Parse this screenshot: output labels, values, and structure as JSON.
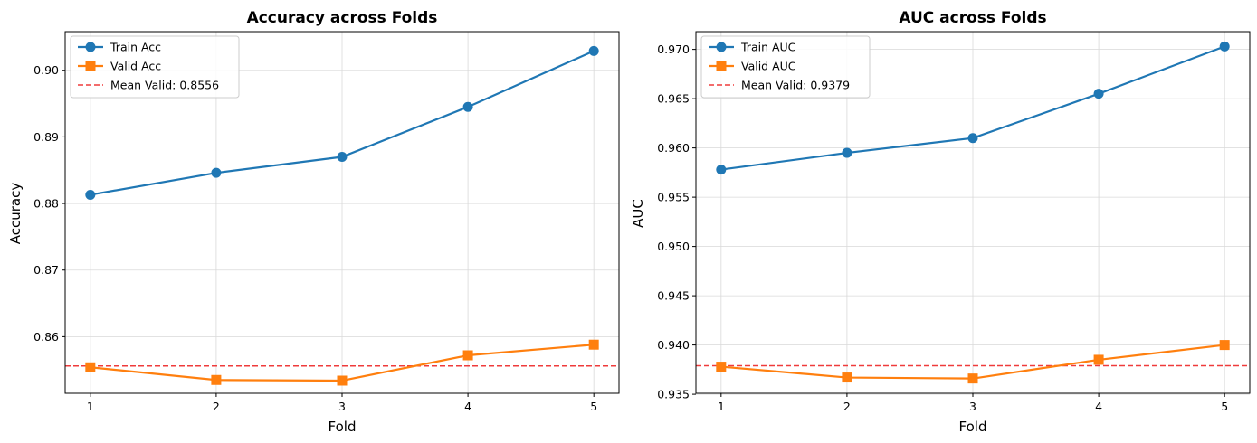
{
  "chart_data": [
    {
      "type": "line",
      "title": "Accuracy across Folds",
      "xlabel": "Fold",
      "ylabel": "Accuracy",
      "x": [
        1,
        2,
        3,
        4,
        5
      ],
      "xticks": [
        "1",
        "2",
        "3",
        "4",
        "5"
      ],
      "xlim": [
        0.8,
        5.2
      ],
      "ylim": [
        0.8515,
        0.9058
      ],
      "yticks": [
        "0.86",
        "0.87",
        "0.88",
        "0.89",
        "0.90"
      ],
      "ytick_values": [
        0.86,
        0.87,
        0.88,
        0.89,
        0.9
      ],
      "grid": true,
      "legend_position": "top-left",
      "series": [
        {
          "name": "Train Acc",
          "values": [
            0.8813,
            0.8846,
            0.887,
            0.8945,
            0.9029
          ],
          "color": "#1f77b4",
          "marker": "circle"
        },
        {
          "name": "Valid Acc",
          "values": [
            0.8554,
            0.8535,
            0.8534,
            0.8572,
            0.8588
          ],
          "color": "#ff7f0e",
          "marker": "square"
        }
      ],
      "reference_line": {
        "label": "Mean Valid: 0.8556",
        "value": 0.8556,
        "color": "#ef3b3b",
        "style": "dashed"
      }
    },
    {
      "type": "line",
      "title": "AUC across Folds",
      "xlabel": "Fold",
      "ylabel": "AUC",
      "x": [
        1,
        2,
        3,
        4,
        5
      ],
      "xticks": [
        "1",
        "2",
        "3",
        "4",
        "5"
      ],
      "xlim": [
        0.8,
        5.2
      ],
      "ylim": [
        0.9351,
        0.9718
      ],
      "yticks": [
        "0.935",
        "0.940",
        "0.945",
        "0.950",
        "0.955",
        "0.960",
        "0.965",
        "0.970"
      ],
      "ytick_values": [
        0.935,
        0.94,
        0.945,
        0.95,
        0.955,
        0.96,
        0.965,
        0.97
      ],
      "grid": true,
      "legend_position": "top-left",
      "series": [
        {
          "name": "Train AUC",
          "values": [
            0.9578,
            0.9595,
            0.961,
            0.9655,
            0.9703
          ],
          "color": "#1f77b4",
          "marker": "circle"
        },
        {
          "name": "Valid AUC",
          "values": [
            0.9378,
            0.9367,
            0.9366,
            0.9385,
            0.94
          ],
          "color": "#ff7f0e",
          "marker": "square"
        }
      ],
      "reference_line": {
        "label": "Mean Valid: 0.9379",
        "value": 0.9379,
        "color": "#ef3b3b",
        "style": "dashed"
      }
    }
  ]
}
